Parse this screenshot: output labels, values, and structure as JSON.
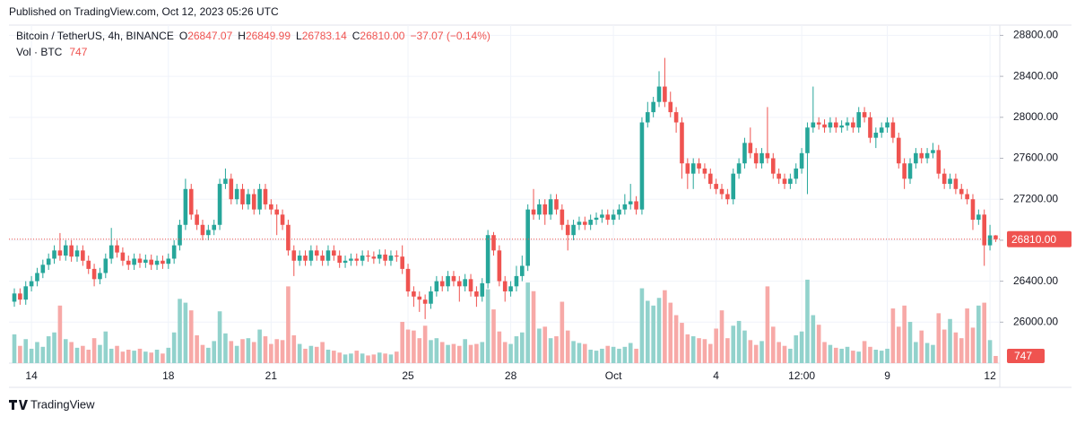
{
  "page": {
    "published": "Published on TradingView.com, Oct 12, 2023 05:26 UTC",
    "brand": "TradingView"
  },
  "legend": {
    "symbol": "Bitcoin / TetherUS, 4h, BINANCE",
    "o": "O",
    "open": "26847.07",
    "h": "H",
    "high": "26849.99",
    "l": "L",
    "low": "26783.14",
    "c": "C",
    "close": "26810.00",
    "change": "−37.07 (−0.14%)",
    "vol": "Vol · BTC"
  },
  "chart_data": {
    "type": "candlestick",
    "up_color": "#26a69a",
    "down_color": "#ef5350",
    "up_volume_color": "#92d2cc",
    "down_volume_color": "#f7a9a7",
    "ylim": [
      25600,
      28900
    ],
    "vlim": [
      0,
      10000
    ],
    "grid": true,
    "last_price_label": "26810.00",
    "yticks": [
      {
        "value": 26000,
        "label": "26000.00"
      },
      {
        "value": 26400,
        "label": "26400.00"
      },
      {
        "value": 26800,
        "label": "26800.00"
      },
      {
        "value": 27200,
        "label": "27200.00"
      },
      {
        "value": 27600,
        "label": "27600.00"
      },
      {
        "value": 28000,
        "label": "28000.00"
      },
      {
        "value": 28400,
        "label": "28400.00"
      },
      {
        "value": 28800,
        "label": "28800.00"
      }
    ],
    "categories": [
      null,
      null,
      null,
      "14",
      null,
      null,
      null,
      null,
      null,
      null,
      null,
      null,
      null,
      null,
      null,
      null,
      null,
      null,
      null,
      null,
      null,
      null,
      null,
      null,
      null,
      null,
      null,
      "18",
      null,
      null,
      null,
      null,
      null,
      null,
      null,
      null,
      null,
      null,
      null,
      null,
      null,
      null,
      null,
      null,
      null,
      "21",
      null,
      null,
      null,
      null,
      null,
      null,
      null,
      null,
      null,
      null,
      null,
      null,
      null,
      null,
      null,
      null,
      null,
      null,
      null,
      null,
      null,
      null,
      null,
      "25",
      null,
      null,
      null,
      null,
      null,
      null,
      null,
      null,
      null,
      null,
      null,
      null,
      null,
      null,
      null,
      null,
      null,
      "28",
      null,
      null,
      null,
      null,
      null,
      null,
      null,
      null,
      null,
      null,
      null,
      null,
      null,
      null,
      null,
      null,
      null,
      "Oct",
      null,
      null,
      null,
      null,
      null,
      null,
      null,
      null,
      null,
      null,
      null,
      null,
      null,
      null,
      null,
      null,
      null,
      "4",
      null,
      null,
      null,
      null,
      null,
      null,
      null,
      null,
      null,
      null,
      null,
      null,
      null,
      null,
      "12:00",
      null,
      null,
      null,
      null,
      null,
      null,
      null,
      null,
      null,
      null,
      null,
      null,
      null,
      null,
      "9",
      null,
      null,
      null,
      null,
      null,
      null,
      null,
      null,
      null,
      null,
      null,
      null,
      null,
      null,
      null,
      null,
      null,
      "12",
      null
    ],
    "open": [
      26200,
      26280,
      26220,
      26350,
      26400,
      26480,
      26560,
      26620,
      26700,
      26650,
      26750,
      26640,
      26700,
      26600,
      26520,
      26420,
      26480,
      26620,
      26750,
      26680,
      26600,
      26560,
      26620,
      26580,
      26610,
      26560,
      26600,
      26570,
      26620,
      26750,
      26950,
      27300,
      27050,
      26950,
      26850,
      26900,
      26950,
      27350,
      27400,
      27200,
      27300,
      27150,
      27250,
      27100,
      27300,
      27150,
      27100,
      27050,
      26950,
      26700,
      26600,
      26650,
      26600,
      26700,
      26650,
      26600,
      26700,
      26650,
      26580,
      26600,
      26620,
      26600,
      26650,
      26640,
      26620,
      26660,
      26600,
      26650,
      26640,
      26520,
      26300,
      26250,
      26220,
      26180,
      26300,
      26400,
      26350,
      26450,
      26400,
      26350,
      26420,
      26300,
      26250,
      26380,
      26850,
      26700,
      26400,
      26300,
      26350,
      26450,
      26550,
      27100,
      27050,
      27150,
      27050,
      27200,
      27100,
      26950,
      26850,
      26950,
      26980,
      26950,
      27000,
      27020,
      27050,
      27000,
      27050,
      27100,
      27150,
      27180,
      27100,
      27950,
      28050,
      28150,
      28300,
      28150,
      28050,
      27950,
      27550,
      27450,
      27550,
      27500,
      27450,
      27350,
      27300,
      27250,
      27200,
      27450,
      27550,
      27750,
      27650,
      27550,
      27650,
      27600,
      27450,
      27400,
      27350,
      27400,
      27500,
      27650,
      27900,
      27950,
      27930,
      27900,
      27950,
      27900,
      27920,
      27950,
      27900,
      28050,
      28000,
      27800,
      27850,
      27900,
      27950,
      27800,
      27550,
      27400,
      27550,
      27650,
      27600,
      27650,
      27680,
      27450,
      27350,
      27400,
      27300,
      27250,
      27200,
      27000,
      27050,
      26750,
      26847.07
    ],
    "high": [
      26330,
      26330,
      26400,
      26450,
      26530,
      26610,
      26670,
      26750,
      26870,
      26800,
      26800,
      26750,
      26750,
      26650,
      26570,
      26530,
      26670,
      26920,
      26800,
      26730,
      26650,
      26670,
      26670,
      26660,
      26660,
      26650,
      26650,
      26670,
      26800,
      27000,
      27400,
      27350,
      27100,
      27000,
      26950,
      27000,
      27400,
      27500,
      27450,
      27350,
      27350,
      27300,
      27300,
      27350,
      27350,
      27200,
      27150,
      27100,
      27000,
      26750,
      26700,
      26700,
      26750,
      26750,
      26700,
      26750,
      26750,
      26700,
      26650,
      26670,
      26670,
      26700,
      26700,
      26690,
      26710,
      26710,
      26700,
      26700,
      26750,
      26570,
      26350,
      26300,
      26270,
      26350,
      26450,
      26450,
      26500,
      26500,
      26450,
      26470,
      26470,
      26350,
      26430,
      26900,
      26880,
      26750,
      26450,
      26400,
      26550,
      26650,
      27150,
      27300,
      27200,
      27200,
      27250,
      27250,
      27150,
      27000,
      27000,
      27030,
      27030,
      27050,
      27070,
      27100,
      27100,
      27100,
      27150,
      27250,
      27350,
      27230,
      28000,
      28150,
      28200,
      28450,
      28580,
      28250,
      28100,
      28000,
      27600,
      27600,
      27600,
      27550,
      27500,
      27400,
      27350,
      27300,
      27500,
      27600,
      27800,
      27900,
      27700,
      27700,
      28100,
      27650,
      27500,
      27450,
      27450,
      27550,
      27700,
      27950,
      28300,
      28000,
      27980,
      28000,
      28000,
      27970,
      28000,
      28000,
      28100,
      28100,
      28050,
      27900,
      27950,
      28000,
      28000,
      27850,
      27600,
      27600,
      27700,
      27700,
      27700,
      27750,
      27730,
      27500,
      27450,
      27450,
      27350,
      27300,
      27250,
      27100,
      27100,
      26950,
      26849.99
    ],
    "low": [
      26150,
      26170,
      26170,
      26300,
      26350,
      26430,
      26510,
      26570,
      26600,
      26600,
      26590,
      26590,
      26550,
      26470,
      26350,
      26370,
      26430,
      26570,
      26630,
      26550,
      26510,
      26510,
      26530,
      26530,
      26510,
      26510,
      26520,
      26520,
      26570,
      26700,
      26900,
      27000,
      26900,
      26800,
      26800,
      26850,
      26900,
      27300,
      27150,
      27150,
      27100,
      27100,
      27050,
      27050,
      27100,
      27050,
      26850,
      26900,
      26650,
      26450,
      26550,
      26550,
      26550,
      26600,
      26550,
      26550,
      26600,
      26530,
      26530,
      26550,
      26550,
      26550,
      26590,
      26570,
      26570,
      26550,
      26550,
      26590,
      26470,
      26250,
      26150,
      26100,
      26030,
      26130,
      26250,
      26300,
      26300,
      26350,
      26200,
      26300,
      26250,
      26150,
      26200,
      26330,
      26650,
      26350,
      26200,
      26250,
      26300,
      26400,
      26500,
      27000,
      27000,
      26950,
      27000,
      27050,
      26900,
      26700,
      26800,
      26900,
      26900,
      26900,
      26950,
      26970,
      26950,
      26950,
      27000,
      27050,
      27100,
      27050,
      27050,
      27900,
      28000,
      28100,
      28100,
      28000,
      27850,
      27400,
      27300,
      27300,
      27450,
      27400,
      27300,
      27250,
      27200,
      27150,
      27150,
      27400,
      27500,
      27600,
      27500,
      27500,
      27550,
      27400,
      27350,
      27300,
      27300,
      27350,
      27450,
      27250,
      27850,
      27880,
      27850,
      27850,
      27850,
      27850,
      27870,
      27850,
      27850,
      27950,
      27750,
      27700,
      27800,
      27850,
      27750,
      27500,
      27300,
      27350,
      27500,
      27550,
      27550,
      27600,
      27400,
      27300,
      27300,
      27250,
      27200,
      27150,
      26900,
      26950,
      26550,
      26700,
      26783.14
    ],
    "close": [
      26280,
      26220,
      26350,
      26400,
      26480,
      26560,
      26620,
      26700,
      26650,
      26750,
      26640,
      26700,
      26600,
      26520,
      26420,
      26480,
      26620,
      26750,
      26680,
      26600,
      26560,
      26620,
      26580,
      26610,
      26560,
      26600,
      26570,
      26620,
      26750,
      26950,
      27300,
      27050,
      26950,
      26850,
      26900,
      26950,
      27350,
      27400,
      27200,
      27300,
      27150,
      27250,
      27100,
      27300,
      27150,
      27100,
      27050,
      26950,
      26700,
      26600,
      26650,
      26600,
      26700,
      26650,
      26600,
      26700,
      26650,
      26580,
      26600,
      26620,
      26600,
      26650,
      26640,
      26620,
      26660,
      26600,
      26650,
      26640,
      26520,
      26300,
      26250,
      26220,
      26180,
      26300,
      26400,
      26350,
      26450,
      26400,
      26350,
      26420,
      26300,
      26250,
      26380,
      26850,
      26700,
      26400,
      26300,
      26350,
      26450,
      26550,
      27100,
      27050,
      27150,
      27050,
      27200,
      27100,
      26950,
      26850,
      26950,
      26980,
      26950,
      27000,
      27020,
      27050,
      27000,
      27050,
      27100,
      27150,
      27180,
      27100,
      27950,
      28050,
      28150,
      28300,
      28150,
      28050,
      27950,
      27550,
      27450,
      27550,
      27500,
      27450,
      27350,
      27300,
      27250,
      27200,
      27450,
      27550,
      27750,
      27650,
      27550,
      27650,
      27600,
      27450,
      27400,
      27350,
      27400,
      27500,
      27650,
      27900,
      27950,
      27930,
      27900,
      27950,
      27900,
      27920,
      27950,
      27900,
      28050,
      28000,
      27800,
      27850,
      27900,
      27950,
      27800,
      27550,
      27400,
      27550,
      27650,
      27600,
      27650,
      27680,
      27450,
      27350,
      27400,
      27300,
      27250,
      27200,
      27000,
      27050,
      26750,
      26847.07,
      26810
    ],
    "volume": [
      3000,
      1800,
      2500,
      1500,
      2200,
      1700,
      2800,
      3200,
      6000,
      2500,
      2200,
      1600,
      1800,
      1400,
      2600,
      1900,
      3300,
      1500,
      1800,
      1200,
      1400,
      1300,
      1500,
      1200,
      1100,
      1400,
      1000,
      1600,
      3200,
      6700,
      6300,
      5500,
      2900,
      1900,
      1600,
      2300,
      5400,
      3100,
      2300,
      1800,
      2500,
      2600,
      2200,
      3500,
      2800,
      2000,
      2500,
      2400,
      8000,
      2900,
      2000,
      1500,
      1800,
      1700,
      2200,
      1400,
      1300,
      1100,
      900,
      1000,
      1300,
      1000,
      800,
      900,
      1100,
      1000,
      900,
      1200,
      4300,
      3500,
      3400,
      2600,
      3900,
      2400,
      2600,
      2200,
      1900,
      2000,
      1800,
      2500,
      1900,
      2000,
      2200,
      7700,
      5600,
      3300,
      2200,
      2000,
      2800,
      3200,
      8400,
      7500,
      3600,
      3800,
      2600,
      2800,
      6400,
      3400,
      2300,
      2100,
      2000,
      1400,
      1300,
      1500,
      1800,
      1700,
      1500,
      1700,
      2100,
      1500,
      7800,
      6500,
      6000,
      6800,
      7600,
      6300,
      5000,
      4200,
      3000,
      2800,
      2600,
      2500,
      2000,
      3600,
      5500,
      2600,
      3900,
      4400,
      3400,
      2400,
      1900,
      2300,
      8000,
      3800,
      2200,
      1800,
      1500,
      2900,
      3300,
      8700,
      5000,
      4000,
      2200,
      1900,
      1600,
      1500,
      1700,
      1300,
      1200,
      2300,
      1700,
      1400,
      1300,
      1500,
      5700,
      3800,
      6000,
      4300,
      2200,
      3400,
      2100,
      1900,
      5200,
      3500,
      4600,
      3200,
      2600,
      5700,
      3700,
      6000,
      6300,
      2400,
      747
    ]
  }
}
